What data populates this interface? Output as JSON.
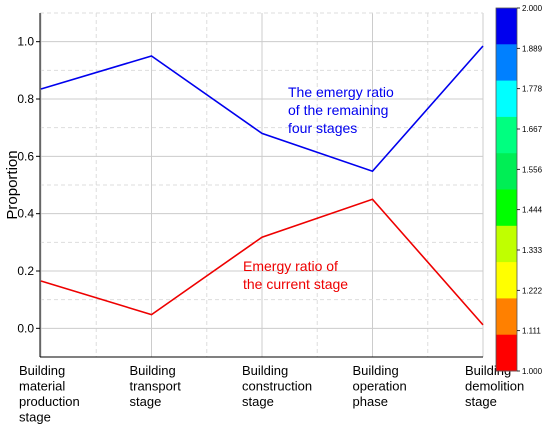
{
  "chart_data": {
    "type": "line",
    "categories": [
      "Building material production stage",
      "Building transport stage",
      "Building construction stage",
      "Building operation phase",
      "Building demolition stage"
    ],
    "category_lines": [
      [
        "Building",
        "material",
        "production",
        "stage"
      ],
      [
        "Building",
        "transport",
        "stage"
      ],
      [
        "Building",
        "construction",
        "stage"
      ],
      [
        "Building",
        "operation",
        "phase"
      ],
      [
        "Building",
        "demolition",
        "stage"
      ]
    ],
    "series": [
      {
        "color": "#0000ee",
        "values": [
          0.835,
          0.95,
          0.68,
          0.548,
          0.985
        ]
      },
      {
        "color": "#ee0000",
        "values": [
          0.165,
          0.048,
          0.318,
          0.45,
          0.012
        ]
      }
    ],
    "annotations": [
      {
        "lines": [
          "The emergy ratio",
          "of the remaining",
          "four stages"
        ],
        "color": "#0000ee"
      },
      {
        "lines": [
          "Emergy ratio of",
          "the current stage"
        ],
        "color": "#ee0000"
      }
    ],
    "ylabel": "Proportion",
    "ylim": [
      -0.1,
      1.1
    ],
    "yticks": [
      "0.0",
      "0.2",
      "0.4",
      "0.6",
      "0.8",
      "1.0"
    ],
    "grid": true,
    "colorbar": {
      "labels": [
        "2.000",
        "1.889",
        "1.778",
        "1.667",
        "1.556",
        "1.444",
        "1.333",
        "1.222",
        "1.111",
        "1.000"
      ],
      "colors": [
        "#0000ee",
        "#0080ff",
        "#00ffff",
        "#00ff80",
        "#00ee55",
        "#00ff00",
        "#c0ff00",
        "#ffff00",
        "#ff8000",
        "#ff0000"
      ]
    }
  }
}
